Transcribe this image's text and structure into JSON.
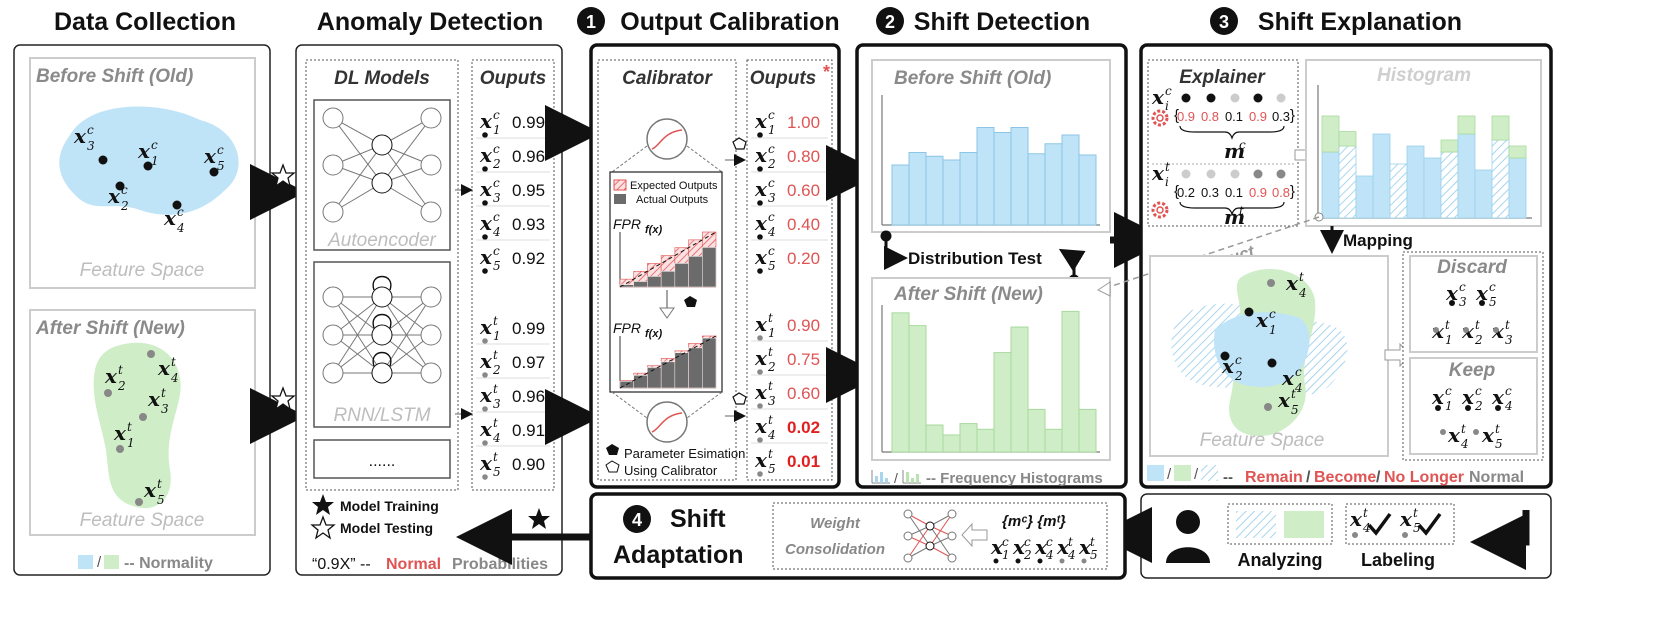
{
  "sections": {
    "data_collection": "Data Collection",
    "anomaly_detection": "Anomaly Detection",
    "output_calibration": "Output Calibration",
    "shift_detection": "Shift Detection",
    "shift_explanation": "Shift Explanation",
    "shift_adaptation_1": "Shift",
    "shift_adaptation_2": "Adaptation"
  },
  "step_numbers": [
    "1",
    "2",
    "3",
    "4"
  ],
  "data_collection": {
    "before": "Before Shift (Old)",
    "after": "After Shift (New)",
    "feature_space": "Feature Space",
    "legend": "-- Normality",
    "slash": "/"
  },
  "anomaly_detection": {
    "models_title": "DL Models",
    "outputs_title": "Ouputs",
    "autoencoder": "Autoencoder",
    "rnn": "RNN/LSTM",
    "more": "......",
    "model_training": "Model Training",
    "model_testing": "Model Testing",
    "prob_prefix": "“0.9X” --",
    "prob_normal": "Normal",
    "prob_suffix": "Probabilities",
    "outputs_c": [
      "0.99",
      "0.96",
      "0.95",
      "0.93",
      "0.92"
    ],
    "outputs_t": [
      "0.99",
      "0.97",
      "0.96",
      "0.91",
      "0.90"
    ]
  },
  "calibration": {
    "calibrator_title": "Calibrator",
    "outputs_title": "Ouputs",
    "asterisk": "*",
    "expected": "Expected Outputs",
    "actual": "Actual  Outputs",
    "fpr": "FPR",
    "fpr_sub": "f(x)",
    "param_est": "Parameter Esimation",
    "using_cal": "Using Calibrator",
    "outputs_c": [
      "1.00",
      "0.80",
      "0.60",
      "0.40",
      "0.20"
    ],
    "outputs_t": [
      "0.90",
      "0.75",
      "0.60",
      "0.02",
      "0.01"
    ]
  },
  "shift_detection": {
    "before": "Before Shift (Old)",
    "after": "After Shift (New)",
    "dist_test": "Distribution Test",
    "freq_hist": "-- Frequency Histograms",
    "slash": "/",
    "before_bars": [
      0.48,
      0.58,
      0.55,
      0.52,
      0.58,
      0.78,
      0.74,
      0.78,
      0.57,
      0.65,
      0.72,
      0.56
    ],
    "after_bars": [
      0.98,
      0.89,
      0.19,
      0.12,
      0.2,
      0.16,
      0.7,
      0.88,
      0.3,
      0.16,
      0.99,
      0.3
    ]
  },
  "explanation": {
    "explainer_title": "Explainer",
    "histogram_title": "Histogram",
    "mc_values": [
      "0.9",
      "0.8",
      "0.1",
      "0.9",
      "0.3"
    ],
    "mt_values": [
      "0.2",
      "0.3",
      "0.1",
      "0.9",
      "0.8"
    ],
    "mc_label": "m",
    "mc_sup": "c",
    "mt_label": "m",
    "mt_sup": "t",
    "mapping": "Mapping",
    "reconstruct": "reconstruct",
    "discard": "Discard",
    "keep": "Keep",
    "feature_space": "Feature Space",
    "legend_remain": "Remain",
    "legend_become": "Become",
    "legend_nolonger": "No Longer",
    "legend_normal": "Normal",
    "legend_sep": "/",
    "legend_dash": "--"
  },
  "adaptation": {
    "weight": "Weight",
    "consolidation": "Consolidation",
    "sets": "{mᶜ} {mᵗ}",
    "analyzing": "Analyzing",
    "labeling": "Labeling"
  },
  "colors": {
    "blue": "#bfe3f7",
    "green": "#cfeec8",
    "red": "#e05454",
    "gray_bar": "#6b6b6b"
  }
}
